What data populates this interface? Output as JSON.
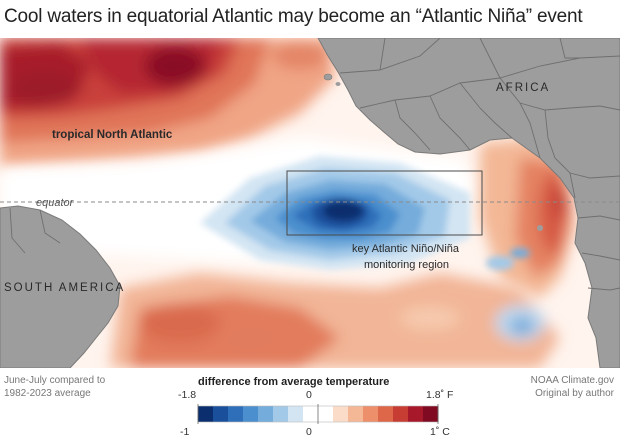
{
  "title": "Cool waters in equatorial Atlantic may become an “Atlantic Niña” event",
  "labels": {
    "north_atlantic": "tropical North Atlantic",
    "equator": "equator",
    "africa": "AFRICA",
    "south_america": "SOUTH AMERICA",
    "region": [
      "key Atlantic Niño/Niña",
      "monitoring region"
    ]
  },
  "legend": {
    "title": "difference from average temperature",
    "fahrenheit": {
      "min": "-1.8",
      "mid": "0",
      "max": "1.8˚ F"
    },
    "celsius": {
      "min": "-1",
      "mid": "0",
      "max": "1˚ C"
    },
    "colors": [
      "#0a2e6e",
      "#1a4f9c",
      "#2f6fba",
      "#4c8fce",
      "#74acdb",
      "#a3c9e8",
      "#d3e5f3",
      "#ffffff",
      "#ffffff",
      "#fbdcc9",
      "#f5b896",
      "#ec8f6a",
      "#de6649",
      "#c73c33",
      "#a7182b",
      "#7f0a22"
    ]
  },
  "footer": {
    "left": [
      "June-July compared to",
      "1982-2023 average"
    ],
    "right": [
      "NOAA Climate.gov",
      "Original by author"
    ]
  },
  "colors": {
    "land": "#9b9b9b",
    "border": "#6e6e6e",
    "warm": "#d8564a",
    "cool": "#1c4f9a"
  }
}
